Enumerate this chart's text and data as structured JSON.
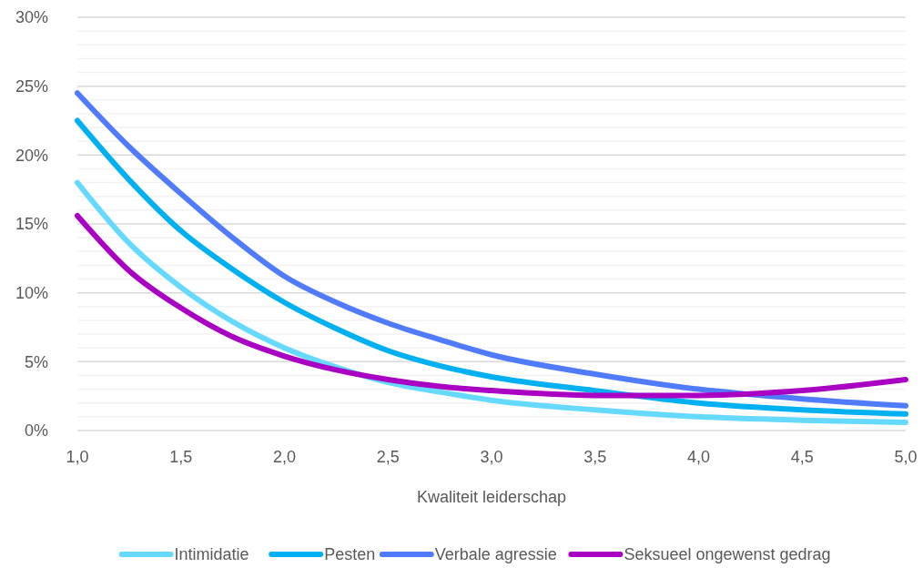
{
  "chart_data": {
    "type": "line",
    "xlabel": "Kwaliteit leiderschap",
    "x": [
      1.0,
      1.25,
      1.5,
      1.75,
      2.0,
      2.25,
      2.5,
      2.75,
      3.0,
      3.5,
      4.0,
      4.5,
      5.0
    ],
    "series": [
      {
        "name": "Intimidatie",
        "color": "#66d9ff",
        "values": [
          18.0,
          13.6,
          10.4,
          7.9,
          6.0,
          4.6,
          3.5,
          2.8,
          2.2,
          1.5,
          1.0,
          0.75,
          0.6
        ]
      },
      {
        "name": "Pesten",
        "color": "#00b0f0",
        "values": [
          22.5,
          18.2,
          14.5,
          11.7,
          9.3,
          7.4,
          5.8,
          4.7,
          3.9,
          2.9,
          2.0,
          1.5,
          1.2
        ]
      },
      {
        "name": "Verbale agressie",
        "color": "#4f7bfc",
        "values": [
          24.5,
          20.6,
          17.2,
          14.0,
          11.2,
          9.3,
          7.8,
          6.6,
          5.5,
          4.1,
          3.0,
          2.3,
          1.8
        ]
      },
      {
        "name": "Seksueel ongewenst gedrag",
        "color": "#a900c4",
        "values": [
          15.6,
          11.6,
          8.9,
          6.8,
          5.4,
          4.4,
          3.7,
          3.2,
          2.9,
          2.55,
          2.55,
          2.9,
          3.7
        ]
      }
    ],
    "xlim": [
      1.0,
      5.0
    ],
    "xticks": [
      {
        "value": 1.0,
        "label": "1,0"
      },
      {
        "value": 1.5,
        "label": "1,5"
      },
      {
        "value": 2.0,
        "label": "2,0"
      },
      {
        "value": 2.5,
        "label": "2,5"
      },
      {
        "value": 3.0,
        "label": "3,0"
      },
      {
        "value": 3.5,
        "label": "3,5"
      },
      {
        "value": 4.0,
        "label": "4,0"
      },
      {
        "value": 4.5,
        "label": "4,5"
      },
      {
        "value": 5.0,
        "label": "5,0"
      }
    ],
    "ylim": [
      0,
      30
    ],
    "yticks": [
      {
        "value": 0,
        "label": "0%"
      },
      {
        "value": 1,
        "label": null
      },
      {
        "value": 2,
        "label": null
      },
      {
        "value": 3,
        "label": null
      },
      {
        "value": 4,
        "label": null
      },
      {
        "value": 5,
        "label": "5%"
      },
      {
        "value": 6,
        "label": null
      },
      {
        "value": 7,
        "label": null
      },
      {
        "value": 8,
        "label": null
      },
      {
        "value": 9,
        "label": null
      },
      {
        "value": 10,
        "label": "10%"
      },
      {
        "value": 11,
        "label": null
      },
      {
        "value": 12,
        "label": null
      },
      {
        "value": 13,
        "label": null
      },
      {
        "value": 14,
        "label": null
      },
      {
        "value": 15,
        "label": "15%"
      },
      {
        "value": 16,
        "label": null
      },
      {
        "value": 17,
        "label": null
      },
      {
        "value": 18,
        "label": null
      },
      {
        "value": 19,
        "label": null
      },
      {
        "value": 20,
        "label": "20%"
      },
      {
        "value": 21,
        "label": null
      },
      {
        "value": 22,
        "label": null
      },
      {
        "value": 23,
        "label": null
      },
      {
        "value": 24,
        "label": null
      },
      {
        "value": 25,
        "label": "25%"
      },
      {
        "value": 26,
        "label": null
      },
      {
        "value": 27,
        "label": null
      },
      {
        "value": 28,
        "label": null
      },
      {
        "value": 29,
        "label": null
      },
      {
        "value": 30,
        "label": "30%"
      }
    ],
    "grid": "y",
    "legend": "bottom",
    "marker": "none",
    "line_style": "solid"
  }
}
